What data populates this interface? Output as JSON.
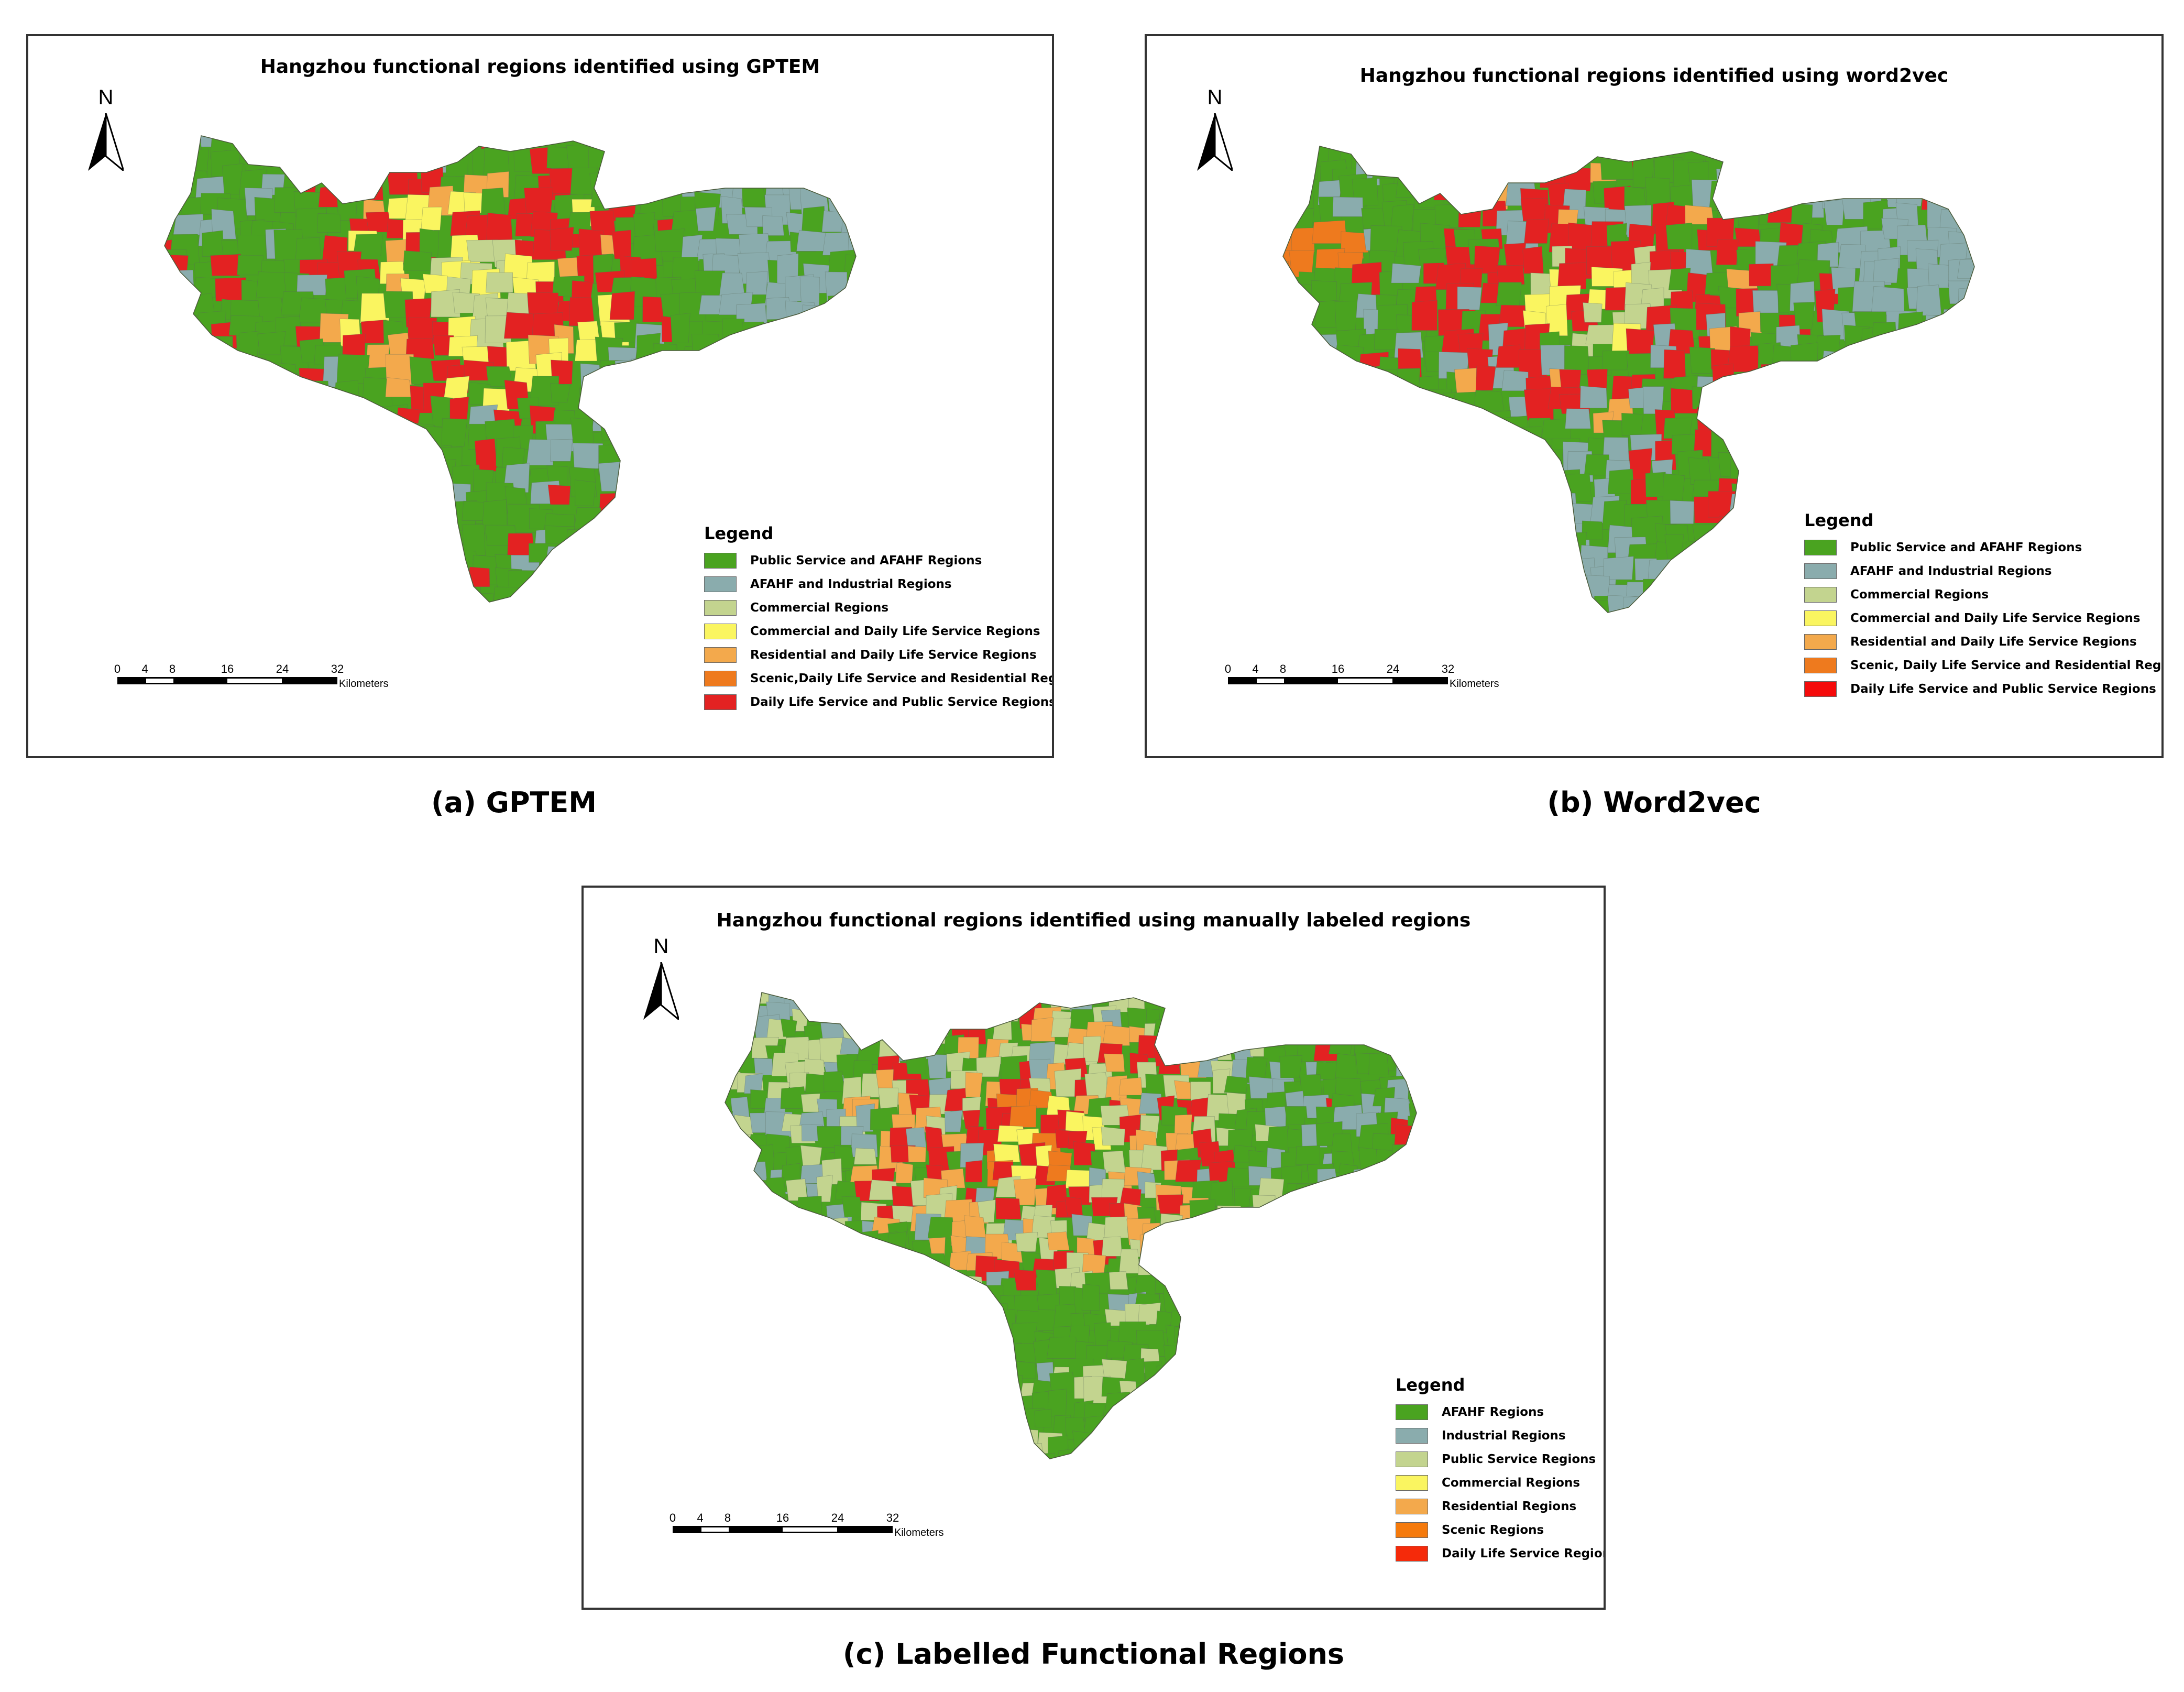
{
  "colors": {
    "green": "#4aa320",
    "teal": "#8aacad",
    "light_green": "#c3d48f",
    "yellow": "#faf560",
    "light_orange": "#f3a94c",
    "orange": "#ee7a1e",
    "red": "#e32222",
    "outline": "#5a6a5a"
  },
  "scalebar": {
    "ticks": [
      "0",
      "4",
      "8",
      "16",
      "24",
      "32"
    ],
    "unit": "Kilometers"
  },
  "north_label": "N",
  "panels": [
    {
      "title": "Hangzhou functional regions identified using  GPTEM",
      "caption": "(a) GPTEM",
      "legend_title": "Legend",
      "legend": [
        {
          "label": "Public Service and AFAHF Regions",
          "color": "#4aa320"
        },
        {
          "label": "AFAHF and Industrial Regions",
          "color": "#8aacad"
        },
        {
          "label": "Commercial Regions",
          "color": "#c3d48f"
        },
        {
          "label": "Commercial and Daily Life Service Regions",
          "color": "#faf560"
        },
        {
          "label": "Residential and Daily Life Service Regions",
          "color": "#f3a94c"
        },
        {
          "label": "Scenic,Daily Life Service and Residential Regions",
          "color": "#ee7a1e"
        },
        {
          "label": "Daily Life Service and Public Service Regions",
          "color": "#e32222"
        }
      ]
    },
    {
      "title": "Hangzhou functional regions identified using word2vec",
      "caption": "(b) Word2vec",
      "legend_title": "Legend",
      "legend": [
        {
          "label": "Public Service and AFAHF Regions",
          "color": "#4aa320"
        },
        {
          "label": "AFAHF and Industrial Regions",
          "color": "#8aacad"
        },
        {
          "label": "Commercial Regions",
          "color": "#c3d48f"
        },
        {
          "label": "Commercial and Daily Life Service Regions",
          "color": "#faf560"
        },
        {
          "label": "Residential and Daily Life Service Regions",
          "color": "#f3a94c"
        },
        {
          "label": "Scenic, Daily Life Service and Residential Regions",
          "color": "#ee7a1e"
        },
        {
          "label": "Daily Life Service and Public Service Regions",
          "color": "#f50a0a"
        }
      ]
    },
    {
      "title": "Hangzhou functional regions identified using  manually labeled regions",
      "caption": "(c) Labelled Functional Regions",
      "legend_title": "Legend",
      "legend": [
        {
          "label": "AFAHF Regions",
          "color": "#4aa320"
        },
        {
          "label": "Industrial Regions",
          "color": "#8aacad"
        },
        {
          "label": "Public Service Regions",
          "color": "#c3d48f"
        },
        {
          "label": "Commercial Regions",
          "color": "#faf560"
        },
        {
          "label": "Residential Regions",
          "color": "#f3a94c"
        },
        {
          "label": "Scenic Regions",
          "color": "#f57a0c"
        },
        {
          "label": "Daily Life Service Regions",
          "color": "#f52a0a"
        }
      ]
    }
  ]
}
